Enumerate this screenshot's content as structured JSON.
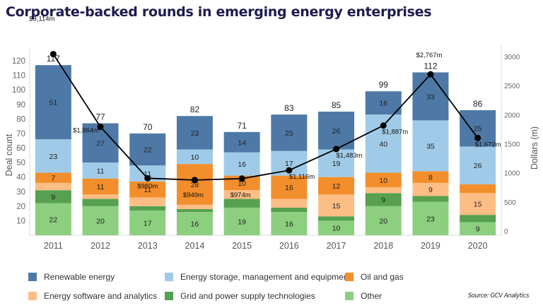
{
  "title": "Corporate-backed rounds in emerging energy enterprises",
  "source": "Source: GCV Analytics",
  "chart_data": {
    "type": "bar",
    "stacked": true,
    "title": "Corporate-backed rounds in emerging energy enterprises",
    "xlabel": "",
    "ylabel": "Deal count",
    "y2label": "Dollars (m)",
    "ylim": [
      0,
      120
    ],
    "y2lim": [
      0,
      3000
    ],
    "yticks": [
      10,
      20,
      30,
      40,
      50,
      60,
      70,
      80,
      90,
      100,
      110,
      120
    ],
    "y2ticks": [
      0,
      500,
      1000,
      1500,
      2000,
      2500,
      3000
    ],
    "categories": [
      "2011",
      "2012",
      "2013",
      "2014",
      "2015",
      "2016",
      "2017",
      "2018",
      "2019",
      "2020"
    ],
    "series": [
      {
        "name": "Other",
        "color": "#8ccf7e",
        "values": [
          22,
          20,
          17,
          16,
          19,
          16,
          10,
          20,
          23,
          9
        ],
        "labeled": [
          true,
          true,
          true,
          true,
          true,
          true,
          true,
          true,
          true,
          true
        ]
      },
      {
        "name": "Grid and power supply technologies",
        "color": "#57a050",
        "values": [
          9,
          5,
          3,
          2,
          6,
          3,
          3,
          9,
          4,
          5
        ],
        "labeled": [
          true,
          false,
          false,
          false,
          false,
          false,
          false,
          true,
          false,
          false
        ]
      },
      {
        "name": "Energy software and analytics",
        "color": "#fdbe85",
        "values": [
          5,
          3,
          6,
          3,
          6,
          6,
          15,
          4,
          9,
          15
        ],
        "labeled": [
          false,
          false,
          false,
          false,
          false,
          false,
          true,
          false,
          true,
          true
        ]
      },
      {
        "name": "Oil and gas",
        "color": "#f28e2b",
        "values": [
          7,
          11,
          11,
          28,
          10,
          16,
          12,
          10,
          8,
          6
        ],
        "labeled": [
          true,
          true,
          true,
          true,
          true,
          true,
          true,
          true,
          true,
          false
        ]
      },
      {
        "name": "Energy storage, management and equipment",
        "color": "#a0cbe8",
        "values": [
          23,
          11,
          11,
          10,
          16,
          17,
          19,
          40,
          35,
          26
        ],
        "labeled": [
          true,
          true,
          true,
          true,
          true,
          true,
          true,
          true,
          true,
          true
        ]
      },
      {
        "name": "Renewable energy",
        "color": "#4e79a7",
        "values": [
          51,
          27,
          22,
          23,
          14,
          25,
          26,
          16,
          33,
          25
        ],
        "labeled": [
          true,
          true,
          true,
          true,
          true,
          true,
          true,
          true,
          true,
          true
        ]
      }
    ],
    "totals": [
      117,
      77,
      70,
      82,
      71,
      83,
      85,
      99,
      112,
      86
    ],
    "line": {
      "name": "Dollars (m)",
      "axis": "right",
      "color": "#000000",
      "values": [
        3114,
        1864,
        980,
        949,
        974,
        1116,
        1483,
        1887,
        2767,
        1672
      ],
      "labels": [
        "$3,114m",
        "$1,864m",
        "$980m",
        "$949m",
        "$974m",
        "$1,116m",
        "$1,483m",
        "$1,887m",
        "$2,767m",
        "$1,672m"
      ]
    },
    "legend": {
      "placement": "bottom",
      "items": [
        {
          "label": "Renewable energy",
          "color": "#4e79a7"
        },
        {
          "label": "Energy storage, management and equipment",
          "color": "#a0cbe8"
        },
        {
          "label": "Oil and gas",
          "color": "#f28e2b"
        },
        {
          "label": "Energy software and analytics",
          "color": "#fdbe85"
        },
        {
          "label": "Grid and power supply technologies",
          "color": "#57a050"
        },
        {
          "label": "Other",
          "color": "#8ccf7e"
        }
      ]
    },
    "grid": false
  }
}
